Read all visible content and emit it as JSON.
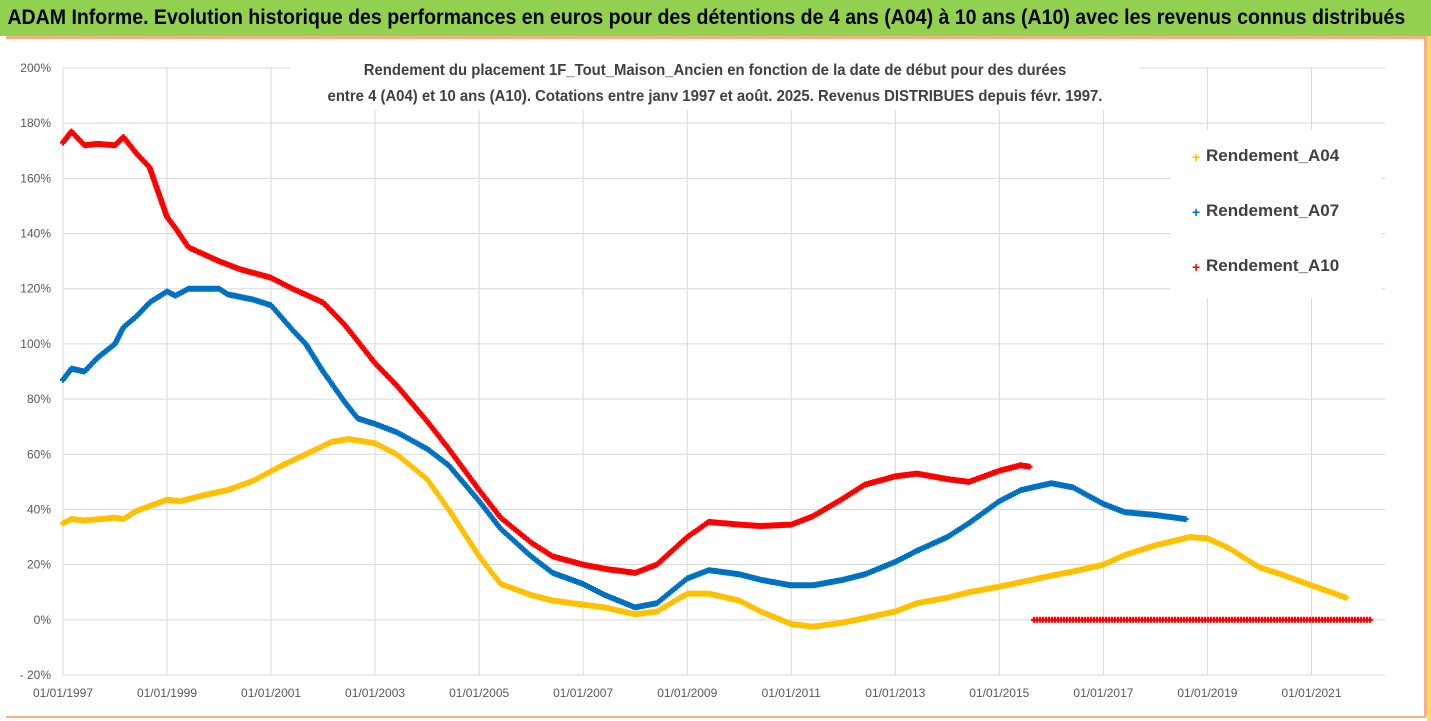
{
  "title": "ADAM Informe. Evolution historique des performances en euros pour des détentions de 4 ans (A04) à 10 ans (A10) avec les revenus connus distribués",
  "chart_data": {
    "type": "scatter",
    "title_lines": [
      "Rendement du placement 1F_Tout_Maison_Ancien en fonction de la date de début pour des durées",
      "entre 4 (A04) et 10 ans (A10). Cotations entre janv 1997 et août. 2025. Revenus DISTRIBUES depuis févr. 1997."
    ],
    "xlabel": "",
    "ylabel": "",
    "ylim": [
      -0.2,
      2.0
    ],
    "xlim": [
      "1997-01-01",
      "2022-06-01"
    ],
    "y_ticks": [
      "- 20%",
      "0%",
      "20%",
      "40%",
      "60%",
      "80%",
      "100%",
      "120%",
      "140%",
      "160%",
      "180%",
      "200%"
    ],
    "x_ticks": [
      "01/01/1997",
      "01/01/1999",
      "01/01/2001",
      "01/01/2003",
      "01/01/2005",
      "01/01/2007",
      "01/01/2009",
      "01/01/2011",
      "01/01/2013",
      "01/01/2015",
      "01/01/2017",
      "01/01/2019",
      "01/01/2021"
    ],
    "grid": true,
    "legend_position": "right",
    "series": [
      {
        "name": "Rendement_A04",
        "color": "#ffc000",
        "points": [
          [
            "1997-01-01",
            0.35
          ],
          [
            "1997-03-01",
            0.365
          ],
          [
            "1997-06-01",
            0.36
          ],
          [
            "1998-01-01",
            0.37
          ],
          [
            "1998-03-01",
            0.365
          ],
          [
            "1998-06-01",
            0.395
          ],
          [
            "1999-01-01",
            0.435
          ],
          [
            "1999-04-01",
            0.43
          ],
          [
            "1999-09-01",
            0.45
          ],
          [
            "2000-03-01",
            0.47
          ],
          [
            "2000-09-01",
            0.505
          ],
          [
            "2001-03-01",
            0.555
          ],
          [
            "2001-09-01",
            0.6
          ],
          [
            "2002-03-01",
            0.645
          ],
          [
            "2002-07-01",
            0.655
          ],
          [
            "2003-01-01",
            0.64
          ],
          [
            "2003-06-01",
            0.6
          ],
          [
            "2004-01-01",
            0.51
          ],
          [
            "2004-06-01",
            0.4
          ],
          [
            "2005-01-01",
            0.23
          ],
          [
            "2005-06-01",
            0.13
          ],
          [
            "2006-01-01",
            0.09
          ],
          [
            "2006-06-01",
            0.07
          ],
          [
            "2007-01-01",
            0.055
          ],
          [
            "2007-06-01",
            0.045
          ],
          [
            "2008-01-01",
            0.02
          ],
          [
            "2008-06-01",
            0.03
          ],
          [
            "2009-01-01",
            0.095
          ],
          [
            "2009-06-01",
            0.095
          ],
          [
            "2010-01-01",
            0.07
          ],
          [
            "2010-06-01",
            0.03
          ],
          [
            "2011-01-01",
            -0.015
          ],
          [
            "2011-06-01",
            -0.025
          ],
          [
            "2012-01-01",
            -0.01
          ],
          [
            "2013-01-01",
            0.03
          ],
          [
            "2013-06-01",
            0.06
          ],
          [
            "2014-01-01",
            0.08
          ],
          [
            "2014-06-01",
            0.1
          ],
          [
            "2015-01-01",
            0.12
          ],
          [
            "2016-01-01",
            0.16
          ],
          [
            "2016-06-01",
            0.175
          ],
          [
            "2017-01-01",
            0.2
          ],
          [
            "2017-06-01",
            0.235
          ],
          [
            "2018-01-01",
            0.27
          ],
          [
            "2018-09-01",
            0.3
          ],
          [
            "2019-01-01",
            0.295
          ],
          [
            "2019-06-01",
            0.26
          ],
          [
            "2020-01-01",
            0.19
          ],
          [
            "2020-06-01",
            0.165
          ],
          [
            "2021-01-01",
            0.125
          ],
          [
            "2021-09-01",
            0.08
          ]
        ]
      },
      {
        "name": "Rendement_A07",
        "color": "#0070c0",
        "points": [
          [
            "1997-01-01",
            0.87
          ],
          [
            "1997-03-01",
            0.91
          ],
          [
            "1997-06-01",
            0.9
          ],
          [
            "1997-09-01",
            0.95
          ],
          [
            "1998-01-01",
            1.0
          ],
          [
            "1998-03-01",
            1.06
          ],
          [
            "1998-06-01",
            1.1
          ],
          [
            "1998-09-01",
            1.15
          ],
          [
            "1999-01-01",
            1.19
          ],
          [
            "1999-03-01",
            1.175
          ],
          [
            "1999-06-01",
            1.2
          ],
          [
            "2000-01-01",
            1.2
          ],
          [
            "2000-03-01",
            1.18
          ],
          [
            "2000-09-01",
            1.16
          ],
          [
            "2001-01-01",
            1.14
          ],
          [
            "2001-06-01",
            1.05
          ],
          [
            "2001-09-01",
            1.0
          ],
          [
            "2002-01-01",
            0.9
          ],
          [
            "2002-06-01",
            0.79
          ],
          [
            "2002-09-01",
            0.73
          ],
          [
            "2003-01-01",
            0.71
          ],
          [
            "2003-06-01",
            0.68
          ],
          [
            "2004-01-01",
            0.62
          ],
          [
            "2004-06-01",
            0.56
          ],
          [
            "2005-01-01",
            0.43
          ],
          [
            "2005-06-01",
            0.33
          ],
          [
            "2006-01-01",
            0.23
          ],
          [
            "2006-06-01",
            0.17
          ],
          [
            "2007-01-01",
            0.13
          ],
          [
            "2007-06-01",
            0.09
          ],
          [
            "2008-01-01",
            0.045
          ],
          [
            "2008-06-01",
            0.06
          ],
          [
            "2009-01-01",
            0.15
          ],
          [
            "2009-06-01",
            0.18
          ],
          [
            "2010-01-01",
            0.165
          ],
          [
            "2010-06-01",
            0.145
          ],
          [
            "2011-01-01",
            0.125
          ],
          [
            "2011-06-01",
            0.125
          ],
          [
            "2012-01-01",
            0.145
          ],
          [
            "2012-06-01",
            0.165
          ],
          [
            "2013-01-01",
            0.21
          ],
          [
            "2013-06-01",
            0.25
          ],
          [
            "2014-01-01",
            0.3
          ],
          [
            "2014-06-01",
            0.35
          ],
          [
            "2015-01-01",
            0.43
          ],
          [
            "2015-06-01",
            0.47
          ],
          [
            "2016-01-01",
            0.495
          ],
          [
            "2016-06-01",
            0.48
          ],
          [
            "2017-01-01",
            0.42
          ],
          [
            "2017-06-01",
            0.39
          ],
          [
            "2018-01-01",
            0.38
          ],
          [
            "2018-08-01",
            0.365
          ]
        ]
      },
      {
        "name": "Rendement_A10",
        "color": "#ff0000",
        "points": [
          [
            "1997-01-01",
            1.73
          ],
          [
            "1997-03-01",
            1.77
          ],
          [
            "1997-06-01",
            1.72
          ],
          [
            "1997-09-01",
            1.725
          ],
          [
            "1998-01-01",
            1.72
          ],
          [
            "1998-03-01",
            1.75
          ],
          [
            "1998-06-01",
            1.69
          ],
          [
            "1998-09-01",
            1.64
          ],
          [
            "1999-01-01",
            1.46
          ],
          [
            "1999-03-01",
            1.42
          ],
          [
            "1999-06-01",
            1.35
          ],
          [
            "2000-01-01",
            1.3
          ],
          [
            "2000-06-01",
            1.27
          ],
          [
            "2001-01-01",
            1.24
          ],
          [
            "2001-06-01",
            1.2
          ],
          [
            "2002-01-01",
            1.15
          ],
          [
            "2002-06-01",
            1.07
          ],
          [
            "2003-01-01",
            0.93
          ],
          [
            "2003-06-01",
            0.85
          ],
          [
            "2004-01-01",
            0.72
          ],
          [
            "2004-06-01",
            0.62
          ],
          [
            "2005-01-01",
            0.47
          ],
          [
            "2005-06-01",
            0.37
          ],
          [
            "2006-01-01",
            0.28
          ],
          [
            "2006-06-01",
            0.23
          ],
          [
            "2007-01-01",
            0.2
          ],
          [
            "2007-06-01",
            0.185
          ],
          [
            "2008-01-01",
            0.17
          ],
          [
            "2008-06-01",
            0.2
          ],
          [
            "2009-01-01",
            0.3
          ],
          [
            "2009-06-01",
            0.355
          ],
          [
            "2010-01-01",
            0.345
          ],
          [
            "2010-06-01",
            0.34
          ],
          [
            "2011-01-01",
            0.345
          ],
          [
            "2011-06-01",
            0.375
          ],
          [
            "2012-01-01",
            0.44
          ],
          [
            "2012-06-01",
            0.49
          ],
          [
            "2013-01-01",
            0.52
          ],
          [
            "2013-06-01",
            0.53
          ],
          [
            "2014-01-01",
            0.51
          ],
          [
            "2014-06-01",
            0.5
          ],
          [
            "2015-01-01",
            0.54
          ],
          [
            "2015-06-01",
            0.56
          ],
          [
            "2015-08-01",
            0.555
          ]
        ],
        "zero_segment": {
          "from": "2015-09-01",
          "to": "2022-03-01",
          "value": 0
        }
      }
    ]
  }
}
